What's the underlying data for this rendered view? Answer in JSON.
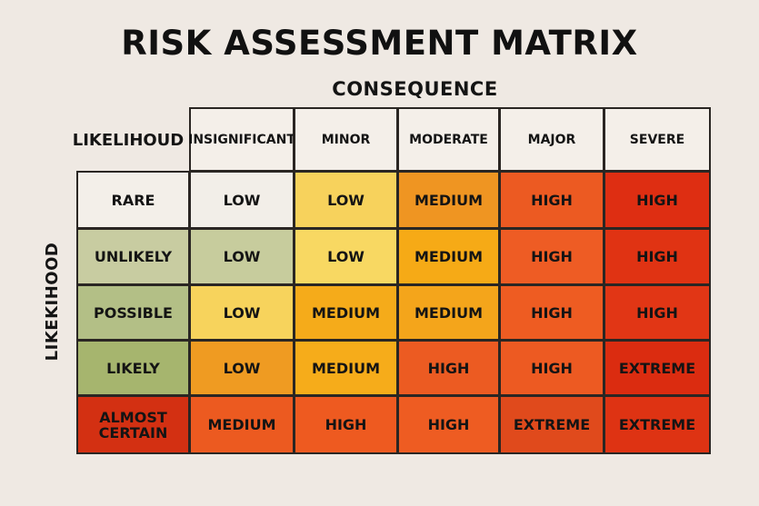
{
  "title": "RISK ASSESSMENT MATRIX",
  "consequence_label": "CONSEQUENCE",
  "likelihood_header": "LIKELIHOUD",
  "likelihood_side_label": "LIKEKIHOOD",
  "columns": [
    "INSIGNIFICANT",
    "MINOR",
    "MODERATE",
    "MAJOR",
    "SEVERE"
  ],
  "rows": [
    {
      "label": "RARE",
      "label_color": "#f3efe9",
      "cells": [
        {
          "text": "LOW",
          "color": "#f2eee8"
        },
        {
          "text": "LOW",
          "color": "#f7d25c"
        },
        {
          "text": "MEDIUM",
          "color": "#ef9522"
        },
        {
          "text": "HIGH",
          "color": "#ec5a22"
        },
        {
          "text": "HIGH",
          "color": "#de2e12"
        }
      ]
    },
    {
      "label": "UNLIKELY",
      "label_color": "#c8cca1",
      "cells": [
        {
          "text": "LOW",
          "color": "#c7cc9d"
        },
        {
          "text": "LOW",
          "color": "#f8d862"
        },
        {
          "text": "MEDIUM",
          "color": "#f6aa16"
        },
        {
          "text": "HIGH",
          "color": "#ee5c24"
        },
        {
          "text": "HIGH",
          "color": "#e03313"
        }
      ]
    },
    {
      "label": "POSSIBLE",
      "label_color": "#b3bf86",
      "cells": [
        {
          "text": "LOW",
          "color": "#f7d35c"
        },
        {
          "text": "MEDIUM",
          "color": "#f5ab1a"
        },
        {
          "text": "MEDIUM",
          "color": "#f4a51b"
        },
        {
          "text": "HIGH",
          "color": "#ee5c22"
        },
        {
          "text": "HIGH",
          "color": "#e13615"
        }
      ]
    },
    {
      "label": "LIKELY",
      "label_color": "#a6b56e",
      "cells": [
        {
          "text": "LOW",
          "color": "#ef9b22"
        },
        {
          "text": "MEDIUM",
          "color": "#f6ac1a"
        },
        {
          "text": "HIGH",
          "color": "#ec5b22"
        },
        {
          "text": "HIGH",
          "color": "#ed5a22"
        },
        {
          "text": "EXTREME",
          "color": "#db2c10"
        }
      ]
    },
    {
      "label": "ALMOST CERTAIN",
      "label_color": "#d33012",
      "cells": [
        {
          "text": "MEDIUM",
          "color": "#ec5a20"
        },
        {
          "text": "HIGH",
          "color": "#ee5a20"
        },
        {
          "text": "HIGH",
          "color": "#ee5c22"
        },
        {
          "text": "EXTREME",
          "color": "#e04a1c"
        },
        {
          "text": "EXTREME",
          "color": "#de3313"
        }
      ]
    }
  ]
}
